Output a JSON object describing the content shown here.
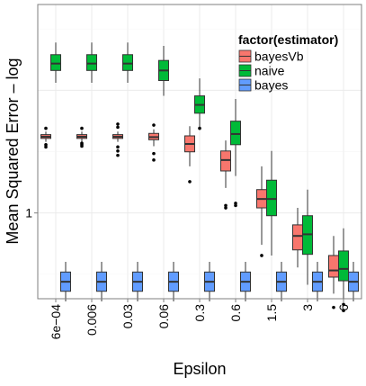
{
  "chart_data": {
    "type": "box",
    "title": "",
    "xlabel": "Epsilon",
    "ylabel": "Mean Squared Error – log",
    "y_scale": "log",
    "y_tick_labels": [
      {
        "value": 1,
        "label": "1"
      }
    ],
    "ylim": [
      0.2,
      50
    ],
    "categories": [
      "6e−04",
      "0.006",
      "0.03",
      "0.06",
      "0.3",
      "0.6",
      "1.5",
      "3",
      "6"
    ],
    "legend": {
      "title": "factor(estimator)",
      "position": "top-right, inside plot"
    },
    "grid": true,
    "series": [
      {
        "name": "bayesVb",
        "color": "#F8766D",
        "boxes": [
          {
            "whisker_low": 3.8,
            "q1": 4.05,
            "median": 4.18,
            "q3": 4.35,
            "whisker_high": 4.6,
            "outliers": [
              3.45,
              3.6,
              4.9
            ]
          },
          {
            "whisker_low": 3.8,
            "q1": 4.05,
            "median": 4.18,
            "q3": 4.35,
            "whisker_high": 4.6,
            "outliers": [
              3.5,
              3.6,
              3.7,
              4.9
            ]
          },
          {
            "whisker_low": 3.8,
            "q1": 4.05,
            "median": 4.18,
            "q3": 4.35,
            "whisker_high": 4.6,
            "outliers": [
              2.95,
              3.2,
              3.45,
              5.0,
              5.3
            ]
          },
          {
            "whisker_low": 3.5,
            "q1": 3.95,
            "median": 4.15,
            "q3": 4.45,
            "whisker_high": 4.8,
            "outliers": [
              2.7,
              3.05,
              5.2
            ]
          },
          {
            "whisker_low": 2.4,
            "q1": 3.15,
            "median": 3.65,
            "q3": 4.25,
            "whisker_high": 5.1,
            "outliers": [
              1.8
            ]
          },
          {
            "whisker_low": 1.6,
            "q1": 2.2,
            "median": 2.7,
            "q3": 3.2,
            "whisker_high": 3.9,
            "outliers": [
              1.1,
              1.15
            ]
          },
          {
            "whisker_low": 0.55,
            "q1": 1.1,
            "median": 1.3,
            "q3": 1.55,
            "whisker_high": 2.4,
            "outliers": [
              0.45
            ]
          },
          {
            "whisker_low": 0.36,
            "q1": 0.5,
            "median": 0.65,
            "q3": 0.8,
            "whisker_high": 1.1,
            "outliers": []
          },
          {
            "whisker_low": 0.22,
            "q1": 0.3,
            "median": 0.34,
            "q3": 0.45,
            "whisker_high": 0.65,
            "outliers": [
              0.17
            ]
          }
        ]
      },
      {
        "name": "naive",
        "color": "#00BA38",
        "boxes": [
          {
            "whisker_low": 11.5,
            "q1": 14.5,
            "median": 16.5,
            "q3": 19.5,
            "whisker_high": 24.5,
            "outliers": []
          },
          {
            "whisker_low": 11.5,
            "q1": 14.5,
            "median": 16.5,
            "q3": 19.5,
            "whisker_high": 24.5,
            "outliers": []
          },
          {
            "whisker_low": 11.5,
            "q1": 14.5,
            "median": 16.5,
            "q3": 19.5,
            "whisker_high": 24.5,
            "outliers": []
          },
          {
            "whisker_low": 9.0,
            "q1": 12.0,
            "median": 14.5,
            "q3": 17.5,
            "whisker_high": 23.0,
            "outliers": []
          },
          {
            "whisker_low": 5.0,
            "q1": 6.5,
            "median": 7.6,
            "q3": 9.0,
            "whisker_high": 12.5,
            "outliers": [
              4.9
            ]
          },
          {
            "whisker_low": 2.0,
            "q1": 3.6,
            "median": 4.4,
            "q3": 5.6,
            "whisker_high": 8.5,
            "outliers": [
              1.15,
              1.2
            ]
          },
          {
            "whisker_low": 0.45,
            "q1": 0.95,
            "median": 1.3,
            "q3": 1.85,
            "whisker_high": 3.2,
            "outliers": []
          },
          {
            "whisker_low": 0.26,
            "q1": 0.46,
            "median": 0.67,
            "q3": 0.95,
            "whisker_high": 1.55,
            "outliers": []
          },
          {
            "whisker_low": 0.2,
            "q1": 0.28,
            "median": 0.35,
            "q3": 0.49,
            "whisker_high": 0.75,
            "outliers": [
              0.16,
              0.18
            ]
          }
        ]
      },
      {
        "name": "bayes",
        "color": "#619CFF",
        "boxes": [
          {
            "whisker_low": 0.19,
            "q1": 0.23,
            "median": 0.275,
            "q3": 0.33,
            "whisker_high": 0.4,
            "outliers": []
          },
          {
            "whisker_low": 0.19,
            "q1": 0.23,
            "median": 0.275,
            "q3": 0.33,
            "whisker_high": 0.4,
            "outliers": []
          },
          {
            "whisker_low": 0.19,
            "q1": 0.23,
            "median": 0.275,
            "q3": 0.33,
            "whisker_high": 0.4,
            "outliers": []
          },
          {
            "whisker_low": 0.19,
            "q1": 0.23,
            "median": 0.275,
            "q3": 0.33,
            "whisker_high": 0.4,
            "outliers": []
          },
          {
            "whisker_low": 0.19,
            "q1": 0.23,
            "median": 0.275,
            "q3": 0.33,
            "whisker_high": 0.4,
            "outliers": []
          },
          {
            "whisker_low": 0.19,
            "q1": 0.23,
            "median": 0.275,
            "q3": 0.33,
            "whisker_high": 0.4,
            "outliers": []
          },
          {
            "whisker_low": 0.19,
            "q1": 0.23,
            "median": 0.275,
            "q3": 0.33,
            "whisker_high": 0.4,
            "outliers": []
          },
          {
            "whisker_low": 0.19,
            "q1": 0.23,
            "median": 0.275,
            "q3": 0.33,
            "whisker_high": 0.4,
            "outliers": []
          },
          {
            "whisker_low": 0.19,
            "q1": 0.23,
            "median": 0.275,
            "q3": 0.33,
            "whisker_high": 0.4,
            "outliers": []
          }
        ]
      }
    ]
  }
}
